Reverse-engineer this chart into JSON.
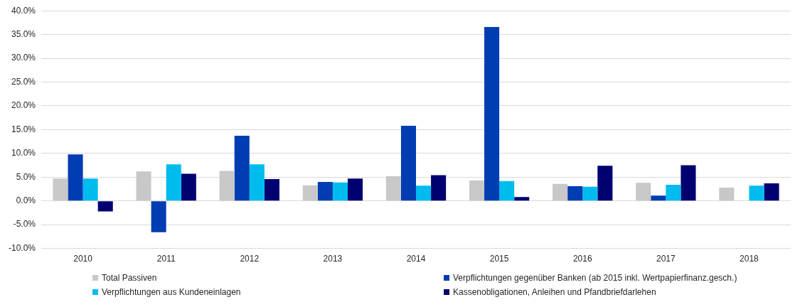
{
  "chart_data": {
    "type": "bar",
    "categories": [
      "2010",
      "2011",
      "2012",
      "2013",
      "2014",
      "2015",
      "2016",
      "2017",
      "2018"
    ],
    "series": [
      {
        "name": "Total Passiven",
        "color": "#c8c8c8",
        "values": [
          4.7,
          6.2,
          6.3,
          3.3,
          5.2,
          4.3,
          3.6,
          3.8,
          2.8
        ]
      },
      {
        "name": "Verpflichtungen gegenüber Banken (ab 2015 inkl. Wertpapierfinanz.gesch.)",
        "color": "#003db3",
        "values": [
          9.8,
          -6.6,
          13.7,
          4.0,
          15.8,
          36.6,
          3.1,
          1.1,
          null
        ]
      },
      {
        "name": "Verpflichtungen aus Kundeneinlagen",
        "color": "#00bcee",
        "values": [
          4.7,
          7.7,
          7.7,
          3.9,
          3.2,
          4.2,
          3.0,
          3.4,
          3.2
        ]
      },
      {
        "name": "Kassenobligationen, Anleihen und Pfandbriefdarlehen",
        "color": "#000070",
        "values": [
          -2.2,
          5.7,
          4.6,
          4.7,
          5.4,
          0.8,
          7.4,
          7.5,
          3.7
        ]
      }
    ],
    "ylim": [
      -10,
      40
    ],
    "yticks": [
      {
        "value": -10,
        "label": "-10.0%"
      },
      {
        "value": -5,
        "label": "-5.0%"
      },
      {
        "value": 0,
        "label": "0.0%"
      },
      {
        "value": 5,
        "label": "5.0%"
      },
      {
        "value": 10,
        "label": "10.0%"
      },
      {
        "value": 15,
        "label": "15.0%"
      },
      {
        "value": 20,
        "label": "20.0%"
      },
      {
        "value": 25,
        "label": "25.0%"
      },
      {
        "value": 30,
        "label": "30.0%"
      },
      {
        "value": 35,
        "label": "35.0%"
      },
      {
        "value": 40,
        "label": "40.0%"
      }
    ],
    "grid": "y",
    "legend": "bottom"
  }
}
